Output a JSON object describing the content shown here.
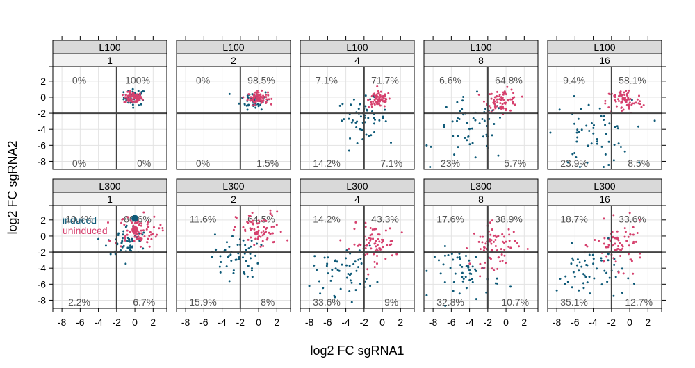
{
  "chart_data": {
    "type": "scatter",
    "xlabel": "log2 FC sgRNA1",
    "ylabel": "log2 FC sgRNA2",
    "xlim": [
      -9,
      3.5
    ],
    "ylim": [
      -9,
      3.8
    ],
    "x_ticks": [
      -8,
      -6,
      -4,
      -2,
      0,
      2
    ],
    "y_ticks": [
      2,
      0,
      -2,
      -4,
      -6,
      -8
    ],
    "threshold": {
      "x": -2,
      "y": -2
    },
    "grid": true,
    "legend": {
      "placement": "top-left of L300 / 1 panel",
      "items": [
        {
          "label": "induced",
          "color": "#0e5a78"
        },
        {
          "label": "uninduced",
          "color": "#d6416e"
        }
      ]
    },
    "series_colors": {
      "induced": "#0e5a78",
      "uninduced": "#d6416e"
    },
    "panels": [
      {
        "row": 0,
        "col": 0,
        "strip_top": "L100",
        "strip_bottom": "1",
        "quadrants": {
          "top_left": "0%",
          "top_right": "100%",
          "bottom_left": "0%",
          "bottom_right": "0%"
        },
        "induced": {
          "cx": 0,
          "cy": 0,
          "sx": 0.6,
          "sy": 0.5
        },
        "uninduced": {
          "cx": -0.2,
          "cy": -0.1,
          "sx": 0.5,
          "sy": 0.35
        }
      },
      {
        "row": 0,
        "col": 1,
        "strip_top": "L100",
        "strip_bottom": "2",
        "quadrants": {
          "top_left": "0%",
          "top_right": "98.5%",
          "bottom_left": "0%",
          "bottom_right": "1.5%"
        },
        "induced": {
          "cx": -0.4,
          "cy": -0.3,
          "sx": 0.8,
          "sy": 0.6
        },
        "uninduced": {
          "cx": -0.1,
          "cy": -0.1,
          "sx": 0.55,
          "sy": 0.4
        }
      },
      {
        "row": 0,
        "col": 2,
        "strip_top": "L100",
        "strip_bottom": "4",
        "quadrants": {
          "top_left": "7.1%",
          "top_right": "71.7%",
          "bottom_left": "14.2%",
          "bottom_right": "7.1%"
        },
        "induced": {
          "cx": -2.2,
          "cy": -2.6,
          "sx": 1.4,
          "sy": 1.2
        },
        "uninduced": {
          "cx": -0.3,
          "cy": -0.3,
          "sx": 0.6,
          "sy": 0.5
        }
      },
      {
        "row": 0,
        "col": 3,
        "strip_top": "L100",
        "strip_bottom": "8",
        "quadrants": {
          "top_left": "6.6%",
          "top_right": "64.8%",
          "bottom_left": "23%",
          "bottom_right": "5.7%"
        },
        "induced": {
          "cx": -3.8,
          "cy": -4.2,
          "sx": 2.0,
          "sy": 2.0
        },
        "uninduced": {
          "cx": -0.4,
          "cy": -0.4,
          "sx": 0.9,
          "sy": 0.7
        }
      },
      {
        "row": 0,
        "col": 4,
        "strip_top": "L100",
        "strip_bottom": "16",
        "quadrants": {
          "top_left": "9.4%",
          "top_right": "58.1%",
          "bottom_left": "23.9%",
          "bottom_right": "8.5%"
        },
        "induced": {
          "cx": -4.2,
          "cy": -4.6,
          "sx": 2.2,
          "sy": 2.1
        },
        "uninduced": {
          "cx": -0.6,
          "cy": -0.5,
          "sx": 1.0,
          "sy": 0.8
        }
      },
      {
        "row": 1,
        "col": 0,
        "strip_top": "L300",
        "strip_bottom": "1",
        "quadrants": {
          "top_left": "10.4%",
          "top_right": "80.6%",
          "bottom_left": "2.2%",
          "bottom_right": "6.7%"
        },
        "induced": {
          "cx": -0.8,
          "cy": -0.6,
          "sx": 1.1,
          "sy": 1.0
        },
        "uninduced": {
          "cx": 0.2,
          "cy": 0.6,
          "sx": 1.2,
          "sy": 1.0
        },
        "big_points": [
          {
            "series": "induced",
            "x": 0,
            "y": 2.2
          },
          {
            "series": "uninduced",
            "x": 0,
            "y": 0.8
          }
        ]
      },
      {
        "row": 1,
        "col": 1,
        "strip_top": "L300",
        "strip_bottom": "2",
        "quadrants": {
          "top_left": "11.6%",
          "top_right": "64.5%",
          "bottom_left": "15.9%",
          "bottom_right": "8%"
        },
        "induced": {
          "cx": -2.6,
          "cy": -2.5,
          "sx": 1.3,
          "sy": 1.4
        },
        "uninduced": {
          "cx": 0.2,
          "cy": 0.6,
          "sx": 1.3,
          "sy": 1.2
        }
      },
      {
        "row": 1,
        "col": 2,
        "strip_top": "L300",
        "strip_bottom": "4",
        "quadrants": {
          "top_left": "14.2%",
          "top_right": "43.3%",
          "bottom_left": "33.6%",
          "bottom_right": "9%"
        },
        "induced": {
          "cx": -4.2,
          "cy": -4.3,
          "sx": 1.7,
          "sy": 1.5
        },
        "uninduced": {
          "cx": -1.0,
          "cy": -1.0,
          "sx": 1.2,
          "sy": 1.2
        }
      },
      {
        "row": 1,
        "col": 3,
        "strip_top": "L300",
        "strip_bottom": "8",
        "quadrants": {
          "top_left": "17.6%",
          "top_right": "38.9%",
          "bottom_left": "32.8%",
          "bottom_right": "10.7%"
        },
        "induced": {
          "cx": -4.2,
          "cy": -4.6,
          "sx": 1.8,
          "sy": 1.6
        },
        "uninduced": {
          "cx": -1.2,
          "cy": -1.2,
          "sx": 1.3,
          "sy": 1.3
        }
      },
      {
        "row": 1,
        "col": 4,
        "strip_top": "L300",
        "strip_bottom": "16",
        "quadrants": {
          "top_left": "18.7%",
          "top_right": "33.6%",
          "bottom_left": "35.1%",
          "bottom_right": "12.7%"
        },
        "induced": {
          "cx": -4.4,
          "cy": -4.7,
          "sx": 1.8,
          "sy": 1.7
        },
        "uninduced": {
          "cx": -1.2,
          "cy": -1.2,
          "sx": 1.4,
          "sy": 1.4
        }
      }
    ]
  }
}
